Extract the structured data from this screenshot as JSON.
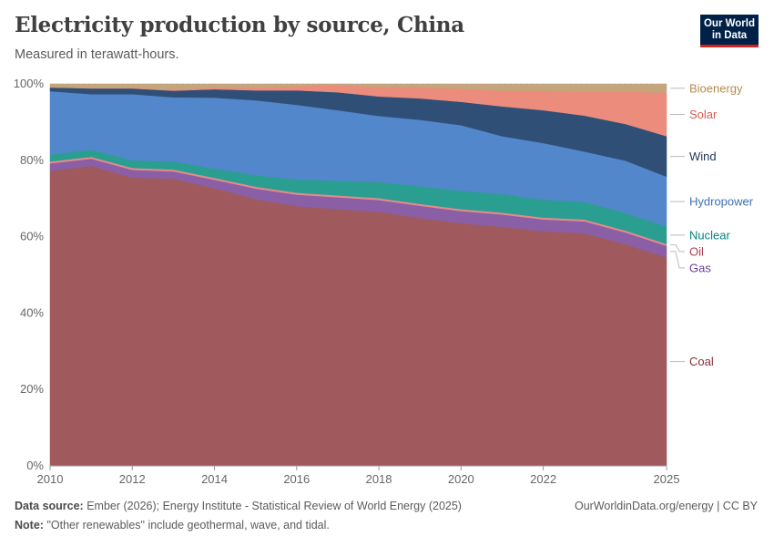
{
  "header": {
    "title": "Electricity production by source, China",
    "subtitle": "Measured in terawatt-hours.",
    "logo_line1": "Our World",
    "logo_line2": "in Data"
  },
  "footer": {
    "source_label": "Data source:",
    "source_text": "Ember (2026); Energy Institute - Statistical Review of World Energy (2025)",
    "note_label": "Note:",
    "note_text": "\"Other renewables\" include geothermal, wave, and tidal.",
    "credit": "OurWorldinData.org/energy | CC BY"
  },
  "chart_data": {
    "type": "area",
    "stacked": true,
    "normalized": true,
    "x": [
      2010,
      2011,
      2012,
      2013,
      2014,
      2015,
      2016,
      2017,
      2018,
      2019,
      2020,
      2021,
      2022,
      2023,
      2024,
      2025
    ],
    "x_tick_labels": [
      "2010",
      "2012",
      "2014",
      "2016",
      "2018",
      "2020",
      "2022",
      "2025"
    ],
    "x_tick_values": [
      2010,
      2012,
      2014,
      2016,
      2018,
      2020,
      2022,
      2025
    ],
    "y_tick_labels": [
      "0%",
      "20%",
      "40%",
      "60%",
      "80%",
      "100%"
    ],
    "y_tick_values": [
      0,
      20,
      40,
      60,
      80,
      100
    ],
    "ylim": [
      0,
      100
    ],
    "series": [
      {
        "name": "Coal",
        "color": "#a05a5e",
        "label_color": "#883039",
        "values": [
          77.2,
          78.5,
          75.5,
          75.2,
          72.7,
          69.8,
          68.0,
          67.2,
          66.5,
          64.9,
          63.5,
          62.6,
          61.4,
          60.9,
          58.0,
          54.6
        ]
      },
      {
        "name": "Gas",
        "color": "#8a5fa5",
        "label_color": "#6d3e91",
        "values": [
          2.0,
          1.9,
          2.0,
          1.9,
          2.2,
          2.8,
          3.0,
          3.1,
          3.1,
          3.2,
          3.2,
          3.2,
          3.1,
          3.1,
          3.1,
          3.0
        ]
      },
      {
        "name": "Oil",
        "color": "#e58a8a",
        "label_color": "#b13d52",
        "values": [
          0.5,
          0.5,
          0.5,
          0.5,
          0.5,
          0.5,
          0.5,
          0.5,
          0.5,
          0.5,
          0.5,
          0.5,
          0.5,
          0.5,
          0.5,
          0.5
        ]
      },
      {
        "name": "Nuclear",
        "color": "#2a9e91",
        "label_color": "#00847e",
        "values": [
          1.8,
          1.9,
          2.0,
          2.1,
          2.4,
          3.0,
          3.5,
          3.9,
          4.2,
          4.6,
          4.8,
          4.9,
          4.7,
          4.6,
          4.6,
          4.6
        ]
      },
      {
        "name": "Hydropower",
        "color": "#5287cb",
        "label_color": "#3f70b8",
        "values": [
          16.6,
          14.5,
          17.3,
          16.8,
          18.6,
          19.6,
          19.5,
          18.4,
          17.3,
          17.4,
          17.2,
          15.1,
          14.8,
          13.2,
          13.7,
          13.0
        ]
      },
      {
        "name": "Wind",
        "color": "#2f4f77",
        "label_color": "#1d3557",
        "values": [
          1.0,
          1.5,
          1.5,
          1.7,
          2.2,
          2.6,
          3.8,
          4.7,
          5.1,
          5.6,
          6.1,
          7.8,
          8.6,
          9.4,
          9.6,
          10.6
        ]
      },
      {
        "name": "Solar",
        "color": "#eb8c7d",
        "label_color": "#d65a4e",
        "values": [
          0.0,
          0.1,
          0.1,
          0.3,
          0.4,
          0.7,
          1.1,
          1.9,
          2.4,
          2.9,
          3.4,
          4.1,
          5.1,
          6.2,
          8.5,
          11.4
        ]
      },
      {
        "name": "Bioenergy",
        "color": "#c5a57c",
        "label_color": "#b58a4f",
        "values": [
          0.9,
          1.1,
          1.1,
          1.5,
          1.0,
          1.0,
          0.6,
          0.3,
          0.9,
          0.9,
          1.3,
          1.8,
          1.8,
          2.1,
          2.0,
          2.3
        ]
      }
    ]
  }
}
